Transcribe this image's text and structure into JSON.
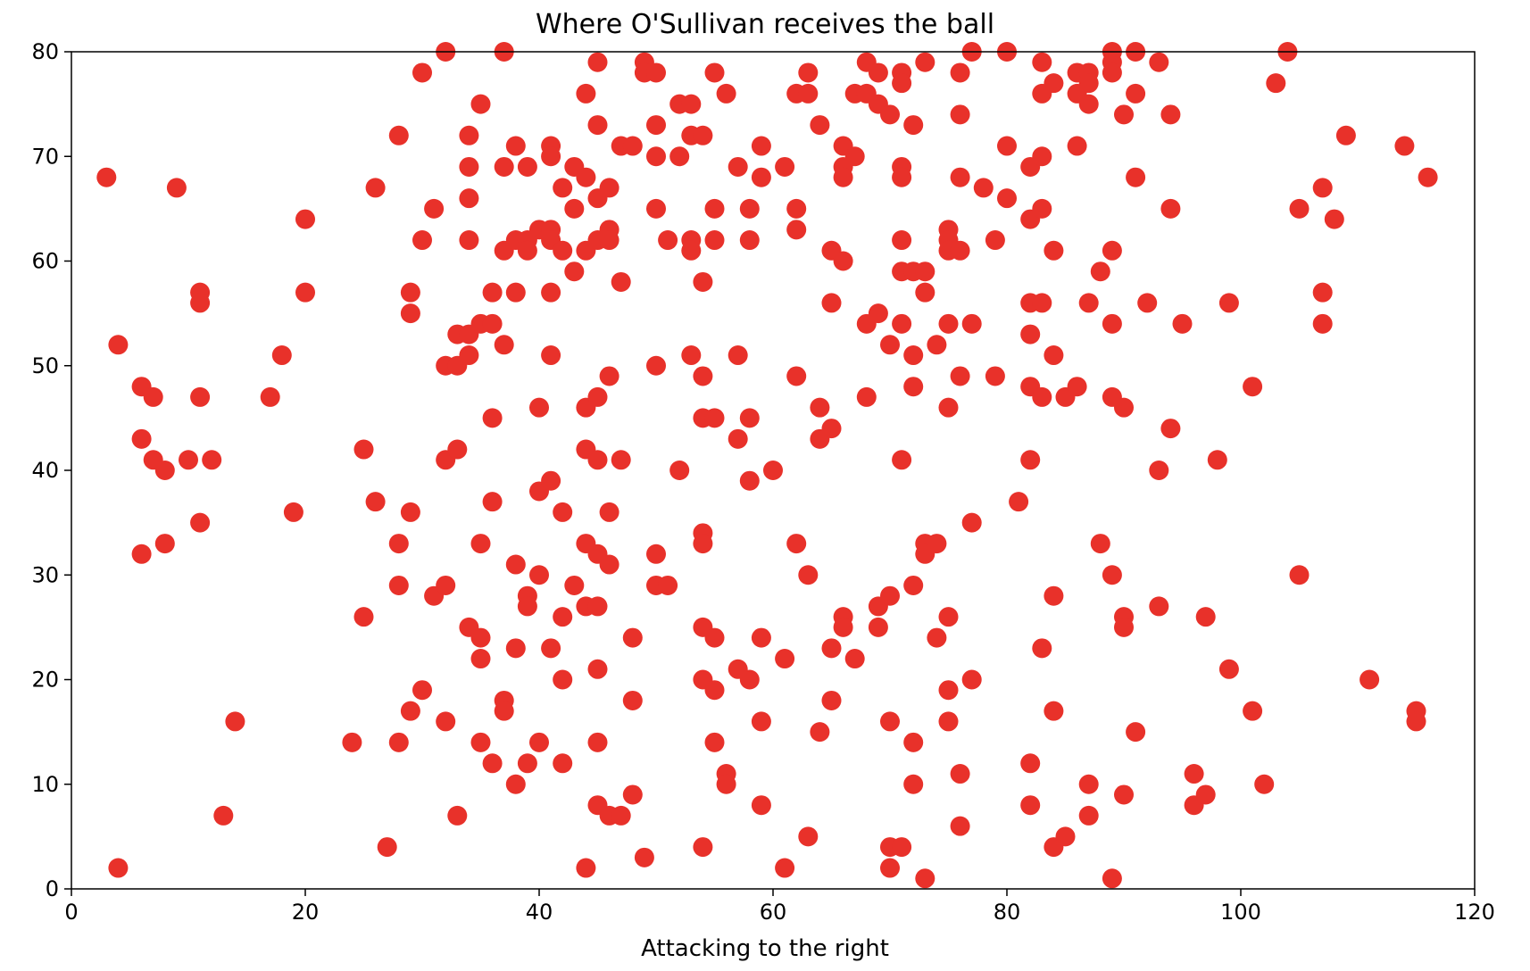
{
  "chart_data": {
    "type": "scatter",
    "title": "Where O'Sullivan receives the ball",
    "xlabel": "Attacking to the right",
    "ylabel": "",
    "xlim": [
      0,
      120
    ],
    "ylim": [
      0,
      80
    ],
    "xticks": [
      0,
      20,
      40,
      60,
      80,
      100,
      120
    ],
    "yticks": [
      0,
      10,
      20,
      30,
      40,
      50,
      60,
      70,
      80
    ],
    "grid": false,
    "color": "#e8312a",
    "points": [
      [
        3,
        68
      ],
      [
        4,
        52
      ],
      [
        4,
        2
      ],
      [
        6,
        48
      ],
      [
        6,
        43
      ],
      [
        6,
        32
      ],
      [
        7,
        47
      ],
      [
        7,
        41
      ],
      [
        8,
        40
      ],
      [
        8,
        33
      ],
      [
        9,
        67
      ],
      [
        10,
        41
      ],
      [
        11,
        57
      ],
      [
        11,
        56
      ],
      [
        11,
        47
      ],
      [
        11,
        35
      ],
      [
        12,
        41
      ],
      [
        13,
        7
      ],
      [
        14,
        16
      ],
      [
        17,
        47
      ],
      [
        18,
        51
      ],
      [
        19,
        36
      ],
      [
        20,
        64
      ],
      [
        20,
        57
      ],
      [
        24,
        14
      ],
      [
        25,
        42
      ],
      [
        25,
        26
      ],
      [
        26,
        67
      ],
      [
        26,
        37
      ],
      [
        27,
        4
      ],
      [
        28,
        72
      ],
      [
        28,
        33
      ],
      [
        28,
        29
      ],
      [
        28,
        14
      ],
      [
        29,
        57
      ],
      [
        29,
        55
      ],
      [
        29,
        36
      ],
      [
        29,
        17
      ],
      [
        30,
        78
      ],
      [
        30,
        62
      ],
      [
        30,
        19
      ],
      [
        31,
        65
      ],
      [
        31,
        28
      ],
      [
        32,
        80
      ],
      [
        32,
        50
      ],
      [
        32,
        41
      ],
      [
        32,
        29
      ],
      [
        32,
        16
      ],
      [
        33,
        53
      ],
      [
        33,
        50
      ],
      [
        33,
        42
      ],
      [
        33,
        7
      ],
      [
        34,
        72
      ],
      [
        34,
        69
      ],
      [
        34,
        66
      ],
      [
        34,
        62
      ],
      [
        34,
        53
      ],
      [
        34,
        51
      ],
      [
        34,
        25
      ],
      [
        35,
        75
      ],
      [
        35,
        54
      ],
      [
        35,
        33
      ],
      [
        35,
        24
      ],
      [
        35,
        22
      ],
      [
        35,
        14
      ],
      [
        36,
        57
      ],
      [
        36,
        54
      ],
      [
        36,
        45
      ],
      [
        36,
        37
      ],
      [
        36,
        12
      ],
      [
        37,
        80
      ],
      [
        37,
        69
      ],
      [
        37,
        61
      ],
      [
        37,
        52
      ],
      [
        37,
        18
      ],
      [
        37,
        17
      ],
      [
        38,
        71
      ],
      [
        38,
        62
      ],
      [
        38,
        57
      ],
      [
        38,
        31
      ],
      [
        38,
        23
      ],
      [
        38,
        10
      ],
      [
        39,
        69
      ],
      [
        39,
        62
      ],
      [
        39,
        61
      ],
      [
        39,
        28
      ],
      [
        39,
        27
      ],
      [
        39,
        12
      ],
      [
        40,
        63
      ],
      [
        40,
        46
      ],
      [
        40,
        38
      ],
      [
        40,
        30
      ],
      [
        40,
        14
      ],
      [
        41,
        71
      ],
      [
        41,
        70
      ],
      [
        41,
        63
      ],
      [
        41,
        62
      ],
      [
        41,
        57
      ],
      [
        41,
        51
      ],
      [
        41,
        39
      ],
      [
        41,
        23
      ],
      [
        42,
        67
      ],
      [
        42,
        61
      ],
      [
        42,
        36
      ],
      [
        42,
        26
      ],
      [
        42,
        20
      ],
      [
        42,
        12
      ],
      [
        43,
        69
      ],
      [
        43,
        65
      ],
      [
        43,
        59
      ],
      [
        43,
        29
      ],
      [
        44,
        76
      ],
      [
        44,
        68
      ],
      [
        44,
        61
      ],
      [
        44,
        46
      ],
      [
        44,
        42
      ],
      [
        44,
        33
      ],
      [
        44,
        27
      ],
      [
        44,
        2
      ],
      [
        45,
        79
      ],
      [
        45,
        73
      ],
      [
        45,
        66
      ],
      [
        45,
        62
      ],
      [
        45,
        47
      ],
      [
        45,
        41
      ],
      [
        45,
        32
      ],
      [
        45,
        27
      ],
      [
        45,
        21
      ],
      [
        45,
        14
      ],
      [
        45,
        8
      ],
      [
        46,
        67
      ],
      [
        46,
        63
      ],
      [
        46,
        62
      ],
      [
        46,
        49
      ],
      [
        46,
        36
      ],
      [
        46,
        31
      ],
      [
        46,
        7
      ],
      [
        47,
        71
      ],
      [
        47,
        58
      ],
      [
        47,
        41
      ],
      [
        47,
        7
      ],
      [
        48,
        71
      ],
      [
        48,
        24
      ],
      [
        48,
        18
      ],
      [
        48,
        9
      ],
      [
        49,
        79
      ],
      [
        49,
        78
      ],
      [
        49,
        3
      ],
      [
        50,
        78
      ],
      [
        50,
        73
      ],
      [
        50,
        70
      ],
      [
        50,
        65
      ],
      [
        50,
        50
      ],
      [
        50,
        32
      ],
      [
        50,
        29
      ],
      [
        51,
        62
      ],
      [
        51,
        29
      ],
      [
        52,
        75
      ],
      [
        52,
        70
      ],
      [
        52,
        40
      ],
      [
        53,
        75
      ],
      [
        53,
        72
      ],
      [
        53,
        62
      ],
      [
        53,
        61
      ],
      [
        53,
        51
      ],
      [
        54,
        72
      ],
      [
        54,
        58
      ],
      [
        54,
        49
      ],
      [
        54,
        45
      ],
      [
        54,
        34
      ],
      [
        54,
        33
      ],
      [
        54,
        25
      ],
      [
        54,
        20
      ],
      [
        54,
        4
      ],
      [
        55,
        78
      ],
      [
        55,
        65
      ],
      [
        55,
        62
      ],
      [
        55,
        45
      ],
      [
        55,
        24
      ],
      [
        55,
        19
      ],
      [
        55,
        14
      ],
      [
        56,
        76
      ],
      [
        56,
        11
      ],
      [
        56,
        10
      ],
      [
        57,
        69
      ],
      [
        57,
        51
      ],
      [
        57,
        43
      ],
      [
        57,
        21
      ],
      [
        58,
        65
      ],
      [
        58,
        62
      ],
      [
        58,
        45
      ],
      [
        58,
        39
      ],
      [
        58,
        20
      ],
      [
        59,
        71
      ],
      [
        59,
        68
      ],
      [
        59,
        24
      ],
      [
        59,
        16
      ],
      [
        59,
        8
      ],
      [
        60,
        40
      ],
      [
        61,
        69
      ],
      [
        61,
        22
      ],
      [
        61,
        2
      ],
      [
        62,
        76
      ],
      [
        62,
        65
      ],
      [
        62,
        63
      ],
      [
        62,
        49
      ],
      [
        62,
        33
      ],
      [
        63,
        78
      ],
      [
        63,
        76
      ],
      [
        63,
        30
      ],
      [
        63,
        5
      ],
      [
        64,
        73
      ],
      [
        64,
        46
      ],
      [
        64,
        43
      ],
      [
        64,
        15
      ],
      [
        65,
        61
      ],
      [
        65,
        56
      ],
      [
        65,
        44
      ],
      [
        65,
        23
      ],
      [
        65,
        18
      ],
      [
        66,
        71
      ],
      [
        66,
        69
      ],
      [
        66,
        68
      ],
      [
        66,
        60
      ],
      [
        66,
        26
      ],
      [
        66,
        25
      ],
      [
        67,
        76
      ],
      [
        67,
        70
      ],
      [
        67,
        22
      ],
      [
        68,
        79
      ],
      [
        68,
        76
      ],
      [
        68,
        54
      ],
      [
        68,
        47
      ],
      [
        69,
        78
      ],
      [
        69,
        75
      ],
      [
        69,
        55
      ],
      [
        69,
        27
      ],
      [
        69,
        25
      ],
      [
        70,
        74
      ],
      [
        70,
        52
      ],
      [
        70,
        28
      ],
      [
        70,
        16
      ],
      [
        70,
        4
      ],
      [
        70,
        2
      ],
      [
        71,
        78
      ],
      [
        71,
        77
      ],
      [
        71,
        69
      ],
      [
        71,
        68
      ],
      [
        71,
        62
      ],
      [
        71,
        59
      ],
      [
        71,
        54
      ],
      [
        71,
        41
      ],
      [
        71,
        4
      ],
      [
        72,
        73
      ],
      [
        72,
        59
      ],
      [
        72,
        51
      ],
      [
        72,
        48
      ],
      [
        72,
        29
      ],
      [
        72,
        14
      ],
      [
        72,
        10
      ],
      [
        73,
        79
      ],
      [
        73,
        59
      ],
      [
        73,
        57
      ],
      [
        73,
        33
      ],
      [
        73,
        32
      ],
      [
        73,
        1
      ],
      [
        74,
        52
      ],
      [
        74,
        33
      ],
      [
        74,
        24
      ],
      [
        75,
        63
      ],
      [
        75,
        62
      ],
      [
        75,
        61
      ],
      [
        75,
        54
      ],
      [
        75,
        46
      ],
      [
        75,
        26
      ],
      [
        75,
        19
      ],
      [
        75,
        16
      ],
      [
        76,
        78
      ],
      [
        76,
        74
      ],
      [
        76,
        68
      ],
      [
        76,
        61
      ],
      [
        76,
        49
      ],
      [
        76,
        11
      ],
      [
        76,
        6
      ],
      [
        77,
        80
      ],
      [
        77,
        54
      ],
      [
        77,
        35
      ],
      [
        77,
        20
      ],
      [
        78,
        67
      ],
      [
        79,
        62
      ],
      [
        79,
        49
      ],
      [
        80,
        80
      ],
      [
        80,
        71
      ],
      [
        80,
        66
      ],
      [
        81,
        37
      ],
      [
        82,
        69
      ],
      [
        82,
        64
      ],
      [
        82,
        56
      ],
      [
        82,
        53
      ],
      [
        82,
        48
      ],
      [
        82,
        41
      ],
      [
        82,
        12
      ],
      [
        82,
        8
      ],
      [
        83,
        79
      ],
      [
        83,
        76
      ],
      [
        83,
        70
      ],
      [
        83,
        65
      ],
      [
        83,
        56
      ],
      [
        83,
        47
      ],
      [
        83,
        23
      ],
      [
        84,
        77
      ],
      [
        84,
        61
      ],
      [
        84,
        51
      ],
      [
        84,
        28
      ],
      [
        84,
        17
      ],
      [
        84,
        4
      ],
      [
        85,
        47
      ],
      [
        85,
        5
      ],
      [
        86,
        78
      ],
      [
        86,
        76
      ],
      [
        86,
        71
      ],
      [
        86,
        48
      ],
      [
        87,
        78
      ],
      [
        87,
        77
      ],
      [
        87,
        75
      ],
      [
        87,
        56
      ],
      [
        87,
        10
      ],
      [
        87,
        7
      ],
      [
        88,
        59
      ],
      [
        88,
        33
      ],
      [
        89,
        80
      ],
      [
        89,
        79
      ],
      [
        89,
        78
      ],
      [
        89,
        61
      ],
      [
        89,
        54
      ],
      [
        89,
        47
      ],
      [
        89,
        30
      ],
      [
        89,
        1
      ],
      [
        90,
        74
      ],
      [
        90,
        46
      ],
      [
        90,
        26
      ],
      [
        90,
        25
      ],
      [
        90,
        9
      ],
      [
        91,
        80
      ],
      [
        91,
        76
      ],
      [
        91,
        68
      ],
      [
        91,
        15
      ],
      [
        92,
        56
      ],
      [
        93,
        79
      ],
      [
        93,
        40
      ],
      [
        93,
        27
      ],
      [
        94,
        74
      ],
      [
        94,
        65
      ],
      [
        94,
        44
      ],
      [
        95,
        54
      ],
      [
        96,
        11
      ],
      [
        96,
        8
      ],
      [
        97,
        26
      ],
      [
        97,
        9
      ],
      [
        98,
        41
      ],
      [
        99,
        56
      ],
      [
        99,
        21
      ],
      [
        101,
        48
      ],
      [
        101,
        17
      ],
      [
        102,
        10
      ],
      [
        103,
        77
      ],
      [
        104,
        80
      ],
      [
        105,
        65
      ],
      [
        105,
        30
      ],
      [
        107,
        67
      ],
      [
        107,
        57
      ],
      [
        107,
        54
      ],
      [
        108,
        64
      ],
      [
        109,
        72
      ],
      [
        111,
        20
      ],
      [
        114,
        71
      ],
      [
        115,
        17
      ],
      [
        115,
        16
      ],
      [
        116,
        68
      ]
    ]
  }
}
